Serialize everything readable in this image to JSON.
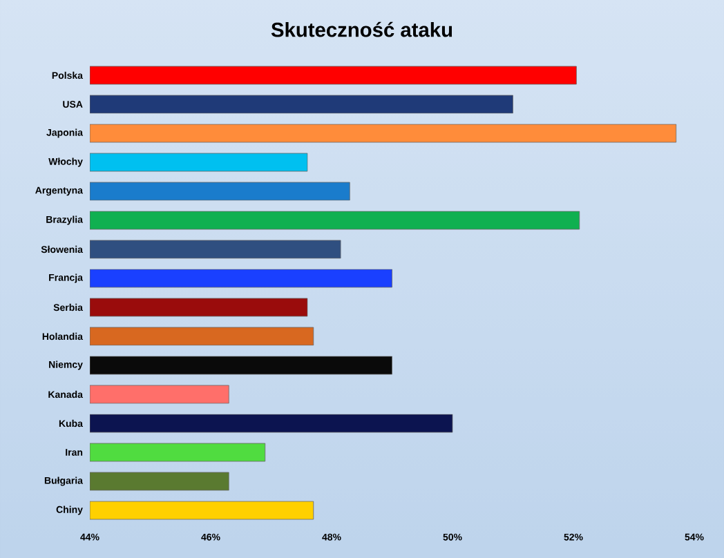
{
  "chart_data": {
    "type": "bar",
    "orientation": "horizontal",
    "title": "Skuteczność ataku",
    "categories": [
      "Polska",
      "USA",
      "Japonia",
      "Włochy",
      "Argentyna",
      "Brazylia",
      "Słowenia",
      "Francja",
      "Serbia",
      "Holandia",
      "Niemcy",
      "Kanada",
      "Kuba",
      "Iran",
      "Bułgaria",
      "Chiny"
    ],
    "values": [
      52.05,
      51.0,
      53.7,
      47.6,
      48.3,
      52.1,
      48.15,
      49.0,
      47.6,
      47.7,
      49.0,
      46.3,
      50.0,
      46.9,
      46.3,
      47.7
    ],
    "colors": [
      "#ff0000",
      "#1f3a78",
      "#ff8c3a",
      "#00c0f0",
      "#1a7ccc",
      "#10b050",
      "#2f4f80",
      "#1a40ff",
      "#9a0c0c",
      "#d86820",
      "#0a0a0a",
      "#ff6f6a",
      "#0c1450",
      "#50dc40",
      "#5a7a30",
      "#ffd000"
    ],
    "xlim": [
      44,
      54
    ],
    "xticks": [
      {
        "value": 44,
        "label": "44%"
      },
      {
        "value": 46,
        "label": "46%"
      },
      {
        "value": 48,
        "label": "48%"
      },
      {
        "value": 50,
        "label": "50%"
      },
      {
        "value": 52,
        "label": "52%"
      },
      {
        "value": 54,
        "label": "54%"
      }
    ],
    "grid": false
  }
}
